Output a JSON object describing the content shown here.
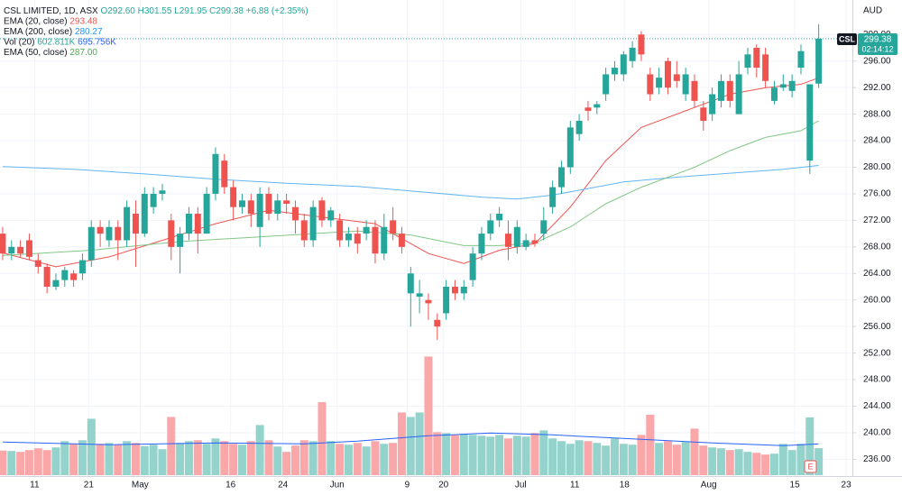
{
  "header": {
    "symbol": "CSL LIMITED, 1D, ASX",
    "quote": [
      "O292.60",
      "H301.55",
      "L291.95",
      "C299.38",
      "+6.88 (+2.35%)"
    ]
  },
  "legend": [
    {
      "name": "EMA (20, close)",
      "values": [
        "293.48"
      ],
      "colors": [
        "#ef5350"
      ]
    },
    {
      "name": "EMA (200, close)",
      "values": [
        "280.27"
      ],
      "colors": [
        "#2196f3"
      ]
    },
    {
      "name": "Vol (20)",
      "values": [
        "602.811K",
        "695.756K"
      ],
      "colors": [
        "#26a69a",
        "#2962ff"
      ]
    },
    {
      "name": "EMA (50, close)",
      "values": [
        "287.00"
      ],
      "colors": [
        "#4caf50"
      ]
    }
  ],
  "price_tag": {
    "symbol": "CSL",
    "price": "299.38",
    "countdown": "02:14:12"
  },
  "event_marker": "E",
  "chart_data": {
    "type": "candlestick",
    "currency": "AUD",
    "up_color": "#26a69a",
    "down_color": "#ef5350",
    "volume_up_color": "#94d3cc",
    "volume_down_color": "#f9a7a8",
    "xlim": [
      -0.3,
      95.8
    ],
    "xticks": [
      {
        "value": 3.6,
        "label": "11"
      },
      {
        "value": 9.7,
        "label": "21"
      },
      {
        "value": 15.5,
        "label": "May"
      },
      {
        "value": 25.7,
        "label": "16"
      },
      {
        "value": 31.6,
        "label": "24"
      },
      {
        "value": 37.7,
        "label": "Jun"
      },
      {
        "value": 45.6,
        "label": "9"
      },
      {
        "value": 49.7,
        "label": "20"
      },
      {
        "value": 58.4,
        "label": "Jul"
      },
      {
        "value": 64.5,
        "label": "11"
      },
      {
        "value": 70.1,
        "label": "18"
      },
      {
        "value": 79.6,
        "label": "Aug"
      },
      {
        "value": 89.3,
        "label": "15"
      },
      {
        "value": 95.1,
        "label": "23"
      }
    ],
    "ylim": [
      233.2,
      305.2
    ],
    "yticks": [
      {
        "value": 300,
        "label": "300.00"
      },
      {
        "value": 296,
        "label": "296.00"
      },
      {
        "value": 292,
        "label": "292.00"
      },
      {
        "value": 288,
        "label": "288.00"
      },
      {
        "value": 284,
        "label": "284.00"
      },
      {
        "value": 280,
        "label": "280.00"
      },
      {
        "value": 276,
        "label": "276.00"
      },
      {
        "value": 272,
        "label": "272.00"
      },
      {
        "value": 268,
        "label": "268.00"
      },
      {
        "value": 264,
        "label": "264.00"
      },
      {
        "value": 260,
        "label": "260.00"
      },
      {
        "value": 256,
        "label": "256.00"
      },
      {
        "value": 252,
        "label": "252.00"
      },
      {
        "value": 248,
        "label": "248.00"
      },
      {
        "value": 244,
        "label": "244.00"
      },
      {
        "value": 240,
        "label": "240.00"
      },
      {
        "value": 236,
        "label": "236.00"
      }
    ],
    "grid": true,
    "last_price": 299.38,
    "open": [
      270,
      267,
      268,
      269,
      266,
      265,
      262,
      263,
      264,
      264,
      266,
      271,
      269,
      271,
      269,
      273,
      270,
      274,
      276,
      272,
      268,
      270,
      273,
      270,
      276,
      281,
      277,
      274,
      275,
      271,
      276,
      273,
      275,
      274,
      272,
      269,
      275,
      272,
      272,
      269,
      270,
      270,
      271,
      267,
      272,
      270,
      261,
      260.5,
      260,
      257,
      258,
      262,
      261,
      263,
      267,
      270,
      272,
      270,
      268,
      268,
      269,
      270,
      274,
      277,
      280,
      285,
      289,
      289,
      291,
      294,
      294,
      296,
      300,
      294,
      292,
      296,
      294,
      291,
      293,
      289,
      288,
      290,
      293,
      288,
      295,
      298,
      297,
      290,
      292,
      291.5,
      295,
      281,
      292.6
    ],
    "high": [
      271,
      269,
      269,
      270,
      267,
      265.5,
      264,
      265,
      264.5,
      267,
      272,
      272,
      272,
      272,
      275,
      275,
      277,
      277,
      277.5,
      273,
      271,
      274,
      274,
      277,
      283,
      282,
      278,
      276,
      276,
      277,
      277,
      276,
      276,
      275,
      273,
      275,
      275.5,
      274,
      273,
      271,
      271,
      272,
      272,
      273,
      274,
      271,
      265,
      263,
      261,
      258,
      263,
      263,
      263,
      268,
      271,
      273,
      274,
      272,
      272,
      270,
      270,
      274,
      278,
      281,
      287,
      288,
      290,
      290,
      295,
      296,
      297.5,
      299,
      300.5,
      295,
      295,
      296.5,
      296,
      295,
      294,
      290,
      292,
      294,
      294,
      296,
      298,
      298.5,
      298,
      293,
      294,
      294,
      298.5,
      292.5,
      301.55
    ],
    "low": [
      266,
      266,
      266.5,
      266,
      264,
      261,
      261.5,
      262,
      262,
      263,
      265,
      268,
      268,
      266,
      268,
      265,
      269.5,
      273,
      275,
      266,
      264,
      269,
      267,
      270,
      275,
      276,
      272,
      273,
      271,
      268,
      272,
      272,
      273,
      270,
      268,
      268,
      271,
      271,
      268,
      268,
      267,
      269,
      265.5,
      266,
      269,
      267,
      256,
      258,
      257,
      254,
      257,
      260,
      260,
      262,
      266,
      269,
      271,
      266,
      267,
      267.5,
      268,
      269,
      273,
      276,
      279,
      284,
      287,
      288,
      290,
      293,
      293,
      295,
      296,
      290,
      291,
      291,
      292,
      290,
      289,
      285.5,
      287,
      289,
      289,
      288,
      294,
      293.5,
      292,
      289.5,
      291.5,
      290.5,
      294,
      279,
      291.95
    ],
    "close": [
      267,
      268,
      267,
      266.5,
      265,
      262,
      263,
      264.5,
      263,
      266,
      271,
      270,
      271,
      269,
      274,
      270,
      276,
      276,
      276.5,
      268,
      270,
      273,
      270,
      276,
      282,
      277,
      274,
      275,
      273,
      276,
      273,
      275,
      274.5,
      272,
      269,
      274,
      272,
      273.5,
      269,
      270,
      268.5,
      271,
      267,
      271,
      270,
      268,
      264,
      261,
      259.5,
      256,
      262,
      261,
      262,
      267,
      270,
      272,
      273,
      268,
      271,
      269,
      268.5,
      272,
      277,
      280,
      286,
      287,
      288.5,
      289.5,
      294,
      295,
      297,
      298,
      297,
      291,
      293.5,
      292,
      293,
      294,
      290,
      287,
      291,
      293,
      290,
      294,
      297,
      295,
      293,
      292,
      292.5,
      293,
      297.5,
      292.5,
      299.38
    ],
    "volume": [
      550,
      540,
      520,
      560,
      600,
      560,
      620,
      760,
      700,
      780,
      1260,
      700,
      720,
      680,
      760,
      720,
      650,
      680,
      580,
      1300,
      720,
      760,
      780,
      700,
      820,
      760,
      700,
      680,
      760,
      1120,
      780,
      640,
      520,
      660,
      780,
      760,
      1630,
      760,
      700,
      680,
      720,
      640,
      760,
      700,
      720,
      1400,
      1300,
      1400,
      2650,
      960,
      940,
      900,
      920,
      900,
      880,
      860,
      900,
      820,
      880,
      860,
      940,
      1000,
      820,
      760,
      700,
      780,
      760,
      720,
      660,
      820,
      700,
      680,
      900,
      1350,
      720,
      760,
      680,
      740,
      1040,
      660,
      620,
      600,
      560,
      580,
      520,
      500,
      460,
      480,
      700,
      560,
      700,
      1290,
      602.811
    ],
    "vlim": [
      0,
      3000
    ],
    "lines": [
      {
        "name": "EMA (20, close)",
        "color": "#ef5350",
        "x": [
          0,
          6,
          12,
          18,
          24,
          30,
          36,
          42,
          48,
          52,
          56,
          60,
          64,
          68,
          72,
          78,
          82,
          86,
          90,
          92
        ],
        "values": [
          267.1,
          265,
          266.5,
          269,
          271.5,
          273.5,
          272.5,
          271.5,
          267,
          265.5,
          267.5,
          268.5,
          274,
          281,
          286,
          289,
          291,
          292,
          292.5,
          293.48
        ]
      },
      {
        "name": "EMA (200, close)",
        "color": "#64b5f6",
        "x": [
          0,
          8,
          16,
          24,
          32,
          40,
          48,
          54,
          58,
          62,
          66,
          70,
          76,
          82,
          88,
          92
        ],
        "values": [
          280.1,
          279.7,
          279,
          278.2,
          277.6,
          277.1,
          276.2,
          275.5,
          275.2,
          275.8,
          276.8,
          277.8,
          278.5,
          279.1,
          279.7,
          280.27
        ]
      },
      {
        "name": "EMA (50, close)",
        "color": "#81c784",
        "x": [
          0,
          10,
          20,
          30,
          40,
          46,
          52,
          56,
          60,
          64,
          68,
          72,
          78,
          82,
          86,
          90,
          92
        ],
        "values": [
          266.7,
          267.5,
          268.8,
          269.6,
          270.4,
          269.8,
          268.2,
          268.2,
          268.6,
          271,
          274.5,
          277,
          280,
          282.5,
          284.5,
          285.5,
          287
        ]
      },
      {
        "name": "Vol (20)",
        "color": "#2962ff",
        "axis": "volume",
        "x": [
          0,
          12,
          24,
          34,
          40,
          48,
          55,
          62,
          70,
          80,
          88,
          92
        ],
        "values": [
          740,
          680,
          720,
          700,
          760,
          880,
          940,
          900,
          820,
          720,
          660,
          695.756
        ]
      }
    ]
  }
}
